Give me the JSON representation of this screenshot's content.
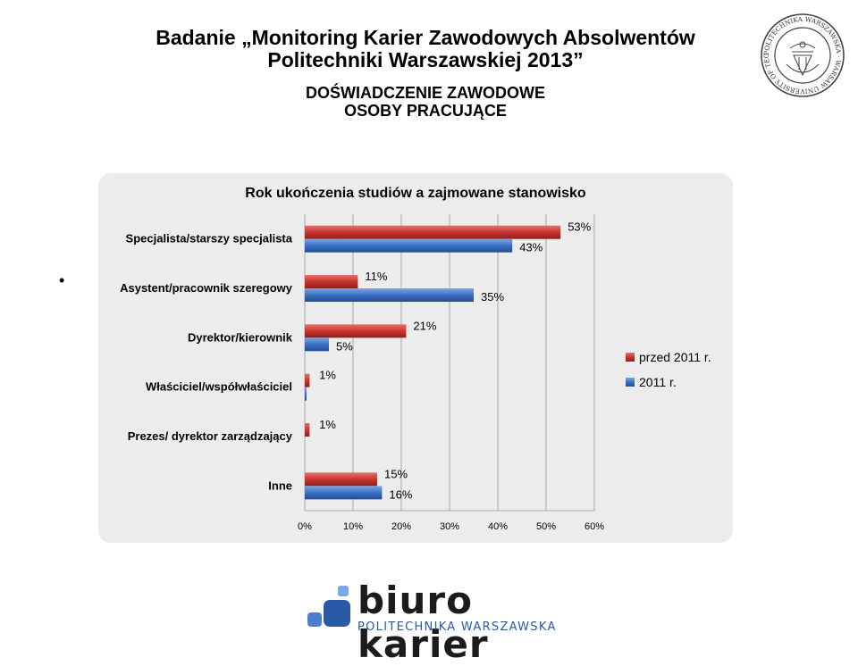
{
  "header": {
    "title_line1": "Badanie „Monitoring Karier Zawodowych Absolwentów",
    "title_line2": "Politechniki Warszawskiej 2013”",
    "subtitle_line1": "DOŚWIADCZENIE ZAWODOWE",
    "subtitle_line2": "OSOBY PRACUJĄCE"
  },
  "seal": {
    "outer_text": "POLITECHNIKA WARSZAWSKA · WARSAW UNIVERSITY OF TECHNOLOGY ·"
  },
  "bullet": "•",
  "chart_data": {
    "type": "bar",
    "orientation": "horizontal",
    "title": "Rok ukończenia studiów a zajmowane stanowisko",
    "categories": [
      "Specjalista/starszy specjalista",
      "Asystent/pracownik szeregowy",
      "Dyrektor/kierownik",
      "Właściciel/współwłaściciel",
      "Prezes/ dyrektor zarządzający",
      "Inne"
    ],
    "series": [
      {
        "name": "przed 2011 r.",
        "color": "#c0302b",
        "values": [
          53,
          11,
          21,
          1,
          1,
          15
        ],
        "labels": [
          "53%",
          "11%",
          "21%",
          "1%",
          "1%",
          "15%"
        ]
      },
      {
        "name": "2011 r.",
        "color": "#3a6fc2",
        "values": [
          43,
          35,
          5,
          0.3,
          0,
          16
        ],
        "labels": [
          "43%",
          "35%",
          "5%",
          "",
          "",
          "16%"
        ]
      }
    ],
    "xlim": [
      0,
      60
    ],
    "ticks": [
      0,
      10,
      20,
      30,
      40,
      50,
      60
    ],
    "tick_labels": [
      "0%",
      "10%",
      "20%",
      "30%",
      "40%",
      "50%",
      "60%"
    ],
    "grid": true,
    "legend_position": "right"
  },
  "logo": {
    "word": "biuro karier",
    "sub": "POLITECHNIKA WARSZAWSKA",
    "colors": [
      "#2a59a8",
      "#4a7fd0",
      "#7aa7e6"
    ]
  }
}
